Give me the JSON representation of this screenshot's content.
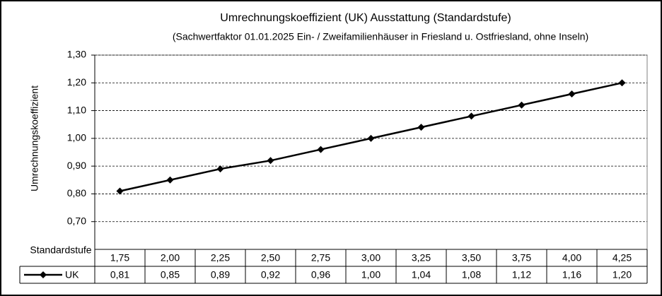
{
  "chart_data": {
    "type": "line",
    "title": "Umrechnungskoeffizient (UK)  Ausstattung (Standardstufe)",
    "subtitle": "(Sachwertfaktor 01.01.2025 Ein- / Zweifamilienhäuser  in Friesland u. Ostfriesland, ohne Inseln)",
    "y_label": "Umrechnungskoeffizient",
    "x_label": "Standardstufe",
    "categories": [
      "1,75",
      "2,00",
      "2,25",
      "2,50",
      "2,75",
      "3,00",
      "3,25",
      "3,50",
      "3,75",
      "4,00",
      "4,25"
    ],
    "series": [
      {
        "name": "UK",
        "color": "#000000",
        "values": [
          0.81,
          0.85,
          0.89,
          0.92,
          0.96,
          1.0,
          1.04,
          1.08,
          1.12,
          1.16,
          1.2
        ],
        "value_labels": [
          "0,81",
          "0,85",
          "0,89",
          "0,92",
          "0,96",
          "1,00",
          "1,04",
          "1,08",
          "1,12",
          "1,16",
          "1,20"
        ]
      }
    ],
    "ylim": [
      0.6,
      1.3
    ],
    "yticks": [
      {
        "value": 0.7,
        "label": "0,70"
      },
      {
        "value": 0.8,
        "label": "0,80"
      },
      {
        "value": 0.9,
        "label": "0,90"
      },
      {
        "value": 1.0,
        "label": "1,00"
      },
      {
        "value": 1.1,
        "label": "1,10"
      },
      {
        "value": 1.2,
        "label": "1,20"
      },
      {
        "value": 1.3,
        "label": "1,30"
      }
    ],
    "grid": true
  }
}
